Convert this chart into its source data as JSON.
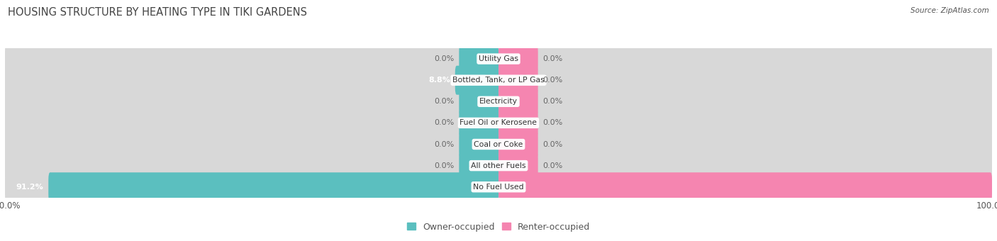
{
  "title": "HOUSING STRUCTURE BY HEATING TYPE IN TIKI GARDENS",
  "source": "Source: ZipAtlas.com",
  "categories": [
    "Utility Gas",
    "Bottled, Tank, or LP Gas",
    "Electricity",
    "Fuel Oil or Kerosene",
    "Coal or Coke",
    "All other Fuels",
    "No Fuel Used"
  ],
  "owner_values": [
    0.0,
    8.8,
    0.0,
    0.0,
    0.0,
    0.0,
    91.2
  ],
  "renter_values": [
    0.0,
    0.0,
    0.0,
    0.0,
    0.0,
    0.0,
    100.0
  ],
  "owner_color": "#5bbfbf",
  "renter_color": "#f585b0",
  "bar_bg_color": "#d8d8d8",
  "row_bg_light": "#f5f5f5",
  "row_bg_dark": "#ebebeb",
  "title_color": "#444444",
  "text_color": "#555555",
  "value_text_dark": "#666666",
  "x_axis_max": 100,
  "min_bar_pct": 8.0,
  "figsize": [
    14.06,
    3.4
  ],
  "dpi": 100
}
